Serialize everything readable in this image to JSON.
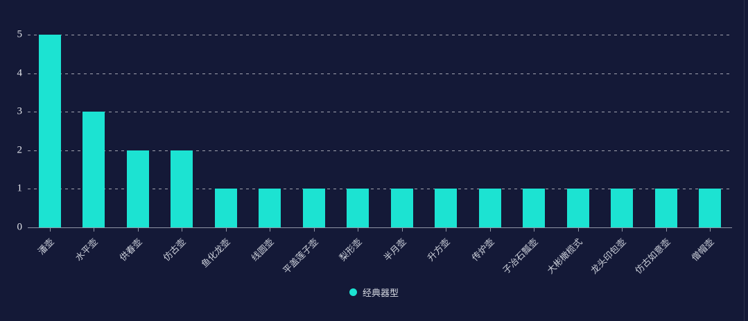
{
  "colors": {
    "background": "#141937",
    "bar": "#1ce3d2",
    "axis_line": "#9095a6",
    "grid_line": "rgba(255,255,255,0.6)",
    "y_label": "#e0e2e8",
    "x_label": "#ccd0da",
    "legend_text": "#d8dbe3"
  },
  "legend": {
    "label": "经典器型"
  },
  "chart_data": {
    "type": "bar",
    "title": "",
    "series_name": "经典器型",
    "categories": [
      "潘壶",
      "水平壶",
      "供春壶",
      "仿古壶",
      "鱼化龙壶",
      "线圆壶",
      "平盖莲子壶",
      "梨形壶",
      "半月壶",
      "升方壶",
      "传炉壶",
      "子冶石瓢壶",
      "大彬橄榄式",
      "龙头印包壶",
      "仿古如意壶",
      "僧帽壶"
    ],
    "values": [
      5,
      3,
      2,
      2,
      1,
      1,
      1,
      1,
      1,
      1,
      1,
      1,
      1,
      1,
      1,
      1
    ],
    "xlabel": "",
    "ylabel": "",
    "ylim": [
      0,
      5
    ],
    "yticks": [
      0,
      1,
      2,
      3,
      4,
      5
    ],
    "grid": "horizontal-dashed",
    "x_label_rotation": -45,
    "legend_position": "bottom-center",
    "bar_color": "#1ce3d2",
    "background_color": "#141937"
  }
}
